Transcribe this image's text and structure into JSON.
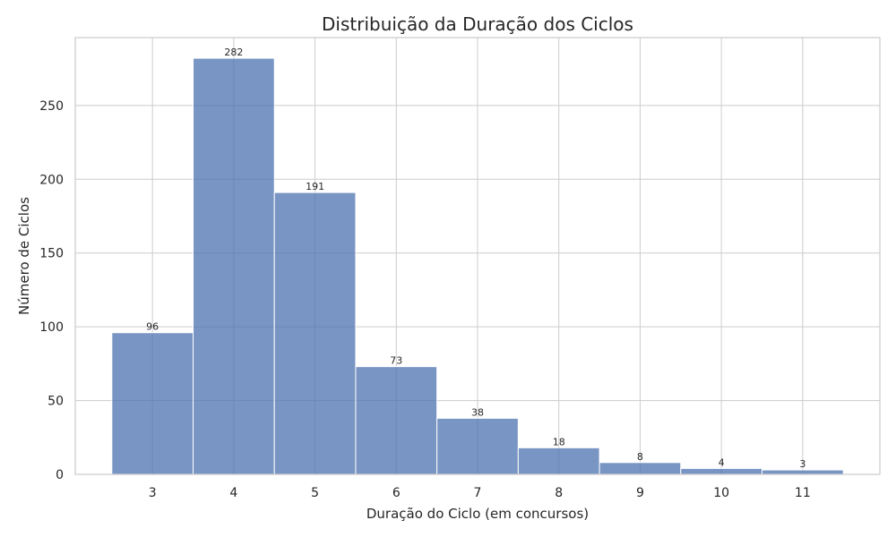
{
  "chart_data": {
    "type": "bar",
    "title": "Distribuição da Duração dos Ciclos",
    "xlabel": "Duração do Ciclo (em concursos)",
    "ylabel": "Número de Ciclos",
    "categories": [
      "3",
      "4",
      "5",
      "6",
      "7",
      "8",
      "9",
      "10",
      "11"
    ],
    "values": [
      96,
      282,
      191,
      73,
      38,
      18,
      8,
      4,
      3
    ],
    "data_labels": [
      "96",
      "282",
      "191",
      "73",
      "38",
      "18",
      "8",
      "4",
      "3"
    ],
    "xlim": [
      2.05,
      11.95
    ],
    "ylim": [
      0,
      296
    ],
    "y_ticks": [
      0,
      50,
      100,
      150,
      200,
      250
    ],
    "y_tick_labels": [
      "0",
      "50",
      "100",
      "150",
      "200",
      "250"
    ],
    "grid": true,
    "bar_color": "#4c72b0",
    "bar_opacity": 0.75
  }
}
